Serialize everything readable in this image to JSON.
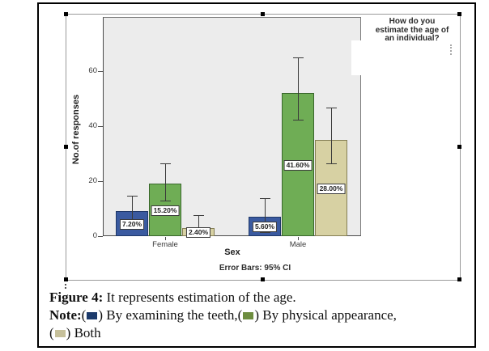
{
  "legend": {
    "title_lines": [
      "How do you",
      "estimate the age of",
      "an individual?"
    ]
  },
  "chart_data": {
    "type": "bar",
    "title": "How do you estimate the age of an individual?",
    "xlabel": "Sex",
    "ylabel": "No.of responses",
    "footnote": "Error Bars: 95% CI",
    "categories": [
      "Female",
      "Male"
    ],
    "yticks": [
      0,
      20,
      40,
      60
    ],
    "ylim": [
      0,
      80
    ],
    "grid": false,
    "legend_position": "top-right",
    "series": [
      {
        "name": "By examining the teeth",
        "color": "#3a5aa0",
        "border_color": "#1f3869",
        "values": [
          9,
          7
        ],
        "percent_labels": [
          "7.20%",
          "5.60%"
        ],
        "ci95": [
          [
            3.4,
            14.8
          ],
          [
            1.5,
            13.8
          ]
        ]
      },
      {
        "name": "By physical appearance",
        "color": "#6fad55",
        "border_color": "#39672c",
        "values": [
          19,
          52
        ],
        "percent_labels": [
          "15.20%",
          "41.60%"
        ],
        "ci95": [
          [
            12.9,
            26.5
          ],
          [
            42.4,
            65.0
          ]
        ]
      },
      {
        "name": "Both",
        "color": "#d7d1a3",
        "border_color": "#857f55",
        "values": [
          3,
          35
        ],
        "percent_labels": [
          "2.40%",
          "28.00%"
        ],
        "ci95": [
          [
            0.6,
            7.6
          ],
          [
            26.5,
            46.8
          ]
        ]
      }
    ]
  },
  "caption": {
    "figure_label": "Figure 4:",
    "figure_text": " It represents estimation of the age.",
    "note_label": "Note:",
    "note_items": [
      {
        "swatch_color": "#1c3a6b",
        "text": ") By examining the teeth,"
      },
      {
        "swatch_color": "#6d8d3f",
        "text": ") By physical appearance,"
      },
      {
        "swatch_color": "#c6c09a",
        "text": ") Both"
      }
    ]
  }
}
